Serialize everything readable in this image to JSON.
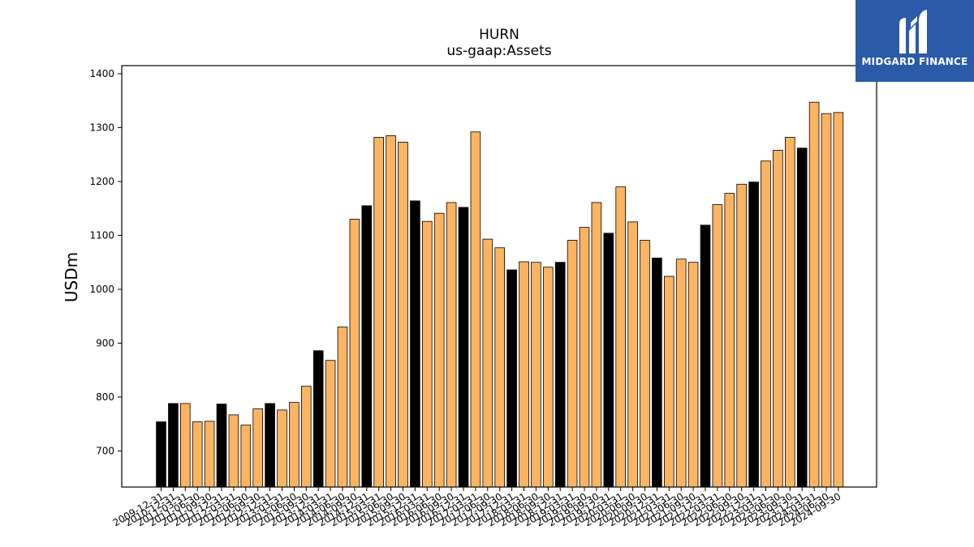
{
  "chart_data": {
    "type": "bar",
    "title": "HURN",
    "subtitle": "us-gaap:Assets",
    "ylabel": "USDm",
    "xlabel": "",
    "ylim": [
      633,
      1415
    ],
    "yticks": [
      700,
      800,
      900,
      1000,
      1100,
      1200,
      1300,
      1400
    ],
    "grid": false,
    "colors": {
      "annual": "#000000",
      "quarterly": "#fdb462",
      "edge": "#000000"
    },
    "categories": [
      "2009-12-31",
      "2010-12-31",
      "2011-03-31",
      "2011-06-30",
      "2011-09-30",
      "2011-12-31",
      "2012-03-31",
      "2012-06-30",
      "2012-09-30",
      "2012-12-31",
      "2013-03-31",
      "2013-06-30",
      "2013-09-30",
      "2013-12-31",
      "2014-03-31",
      "2014-06-30",
      "2014-09-30",
      "2014-12-31",
      "2015-03-31",
      "2015-06-30",
      "2015-09-30",
      "2015-12-31",
      "2016-03-31",
      "2016-06-30",
      "2016-09-30",
      "2016-12-31",
      "2017-03-31",
      "2017-06-30",
      "2017-09-30",
      "2017-12-31",
      "2018-03-31",
      "2018-06-30",
      "2018-09-30",
      "2018-12-31",
      "2019-03-31",
      "2019-06-30",
      "2019-09-30",
      "2019-12-31",
      "2020-03-31",
      "2020-06-30",
      "2020-09-30",
      "2020-12-31",
      "2021-03-31",
      "2021-06-30",
      "2021-09-30",
      "2021-12-31",
      "2022-03-31",
      "2022-06-30",
      "2022-09-30",
      "2022-12-31",
      "2023-03-31",
      "2023-06-30",
      "2023-09-30",
      "2023-12-31",
      "2024-03-31",
      "2024-06-30",
      "2024-09-30"
    ],
    "values": [
      754,
      788,
      788,
      754,
      755,
      787,
      767,
      748,
      778,
      788,
      776,
      790,
      820,
      886,
      868,
      930,
      1130,
      1155,
      1282,
      1285,
      1273,
      1164,
      1126,
      1141,
      1161,
      1152,
      1292,
      1093,
      1077,
      1036,
      1051,
      1050,
      1041,
      1050,
      1091,
      1115,
      1161,
      1104,
      1190,
      1125,
      1091,
      1058,
      1024,
      1056,
      1050,
      1119,
      1157,
      1178,
      1195,
      1199,
      1238,
      1258,
      1282,
      1262,
      1347,
      1326,
      1328
    ],
    "annual_flags": [
      1,
      1,
      0,
      0,
      0,
      1,
      0,
      0,
      0,
      1,
      0,
      0,
      0,
      1,
      0,
      0,
      0,
      1,
      0,
      0,
      0,
      1,
      0,
      0,
      0,
      1,
      0,
      0,
      0,
      1,
      0,
      0,
      0,
      1,
      0,
      0,
      0,
      1,
      0,
      0,
      0,
      1,
      0,
      0,
      0,
      1,
      0,
      0,
      0,
      1,
      0,
      0,
      0,
      1,
      0,
      0,
      0
    ]
  },
  "logo": {
    "text": "MIDGARD FINANCE"
  }
}
